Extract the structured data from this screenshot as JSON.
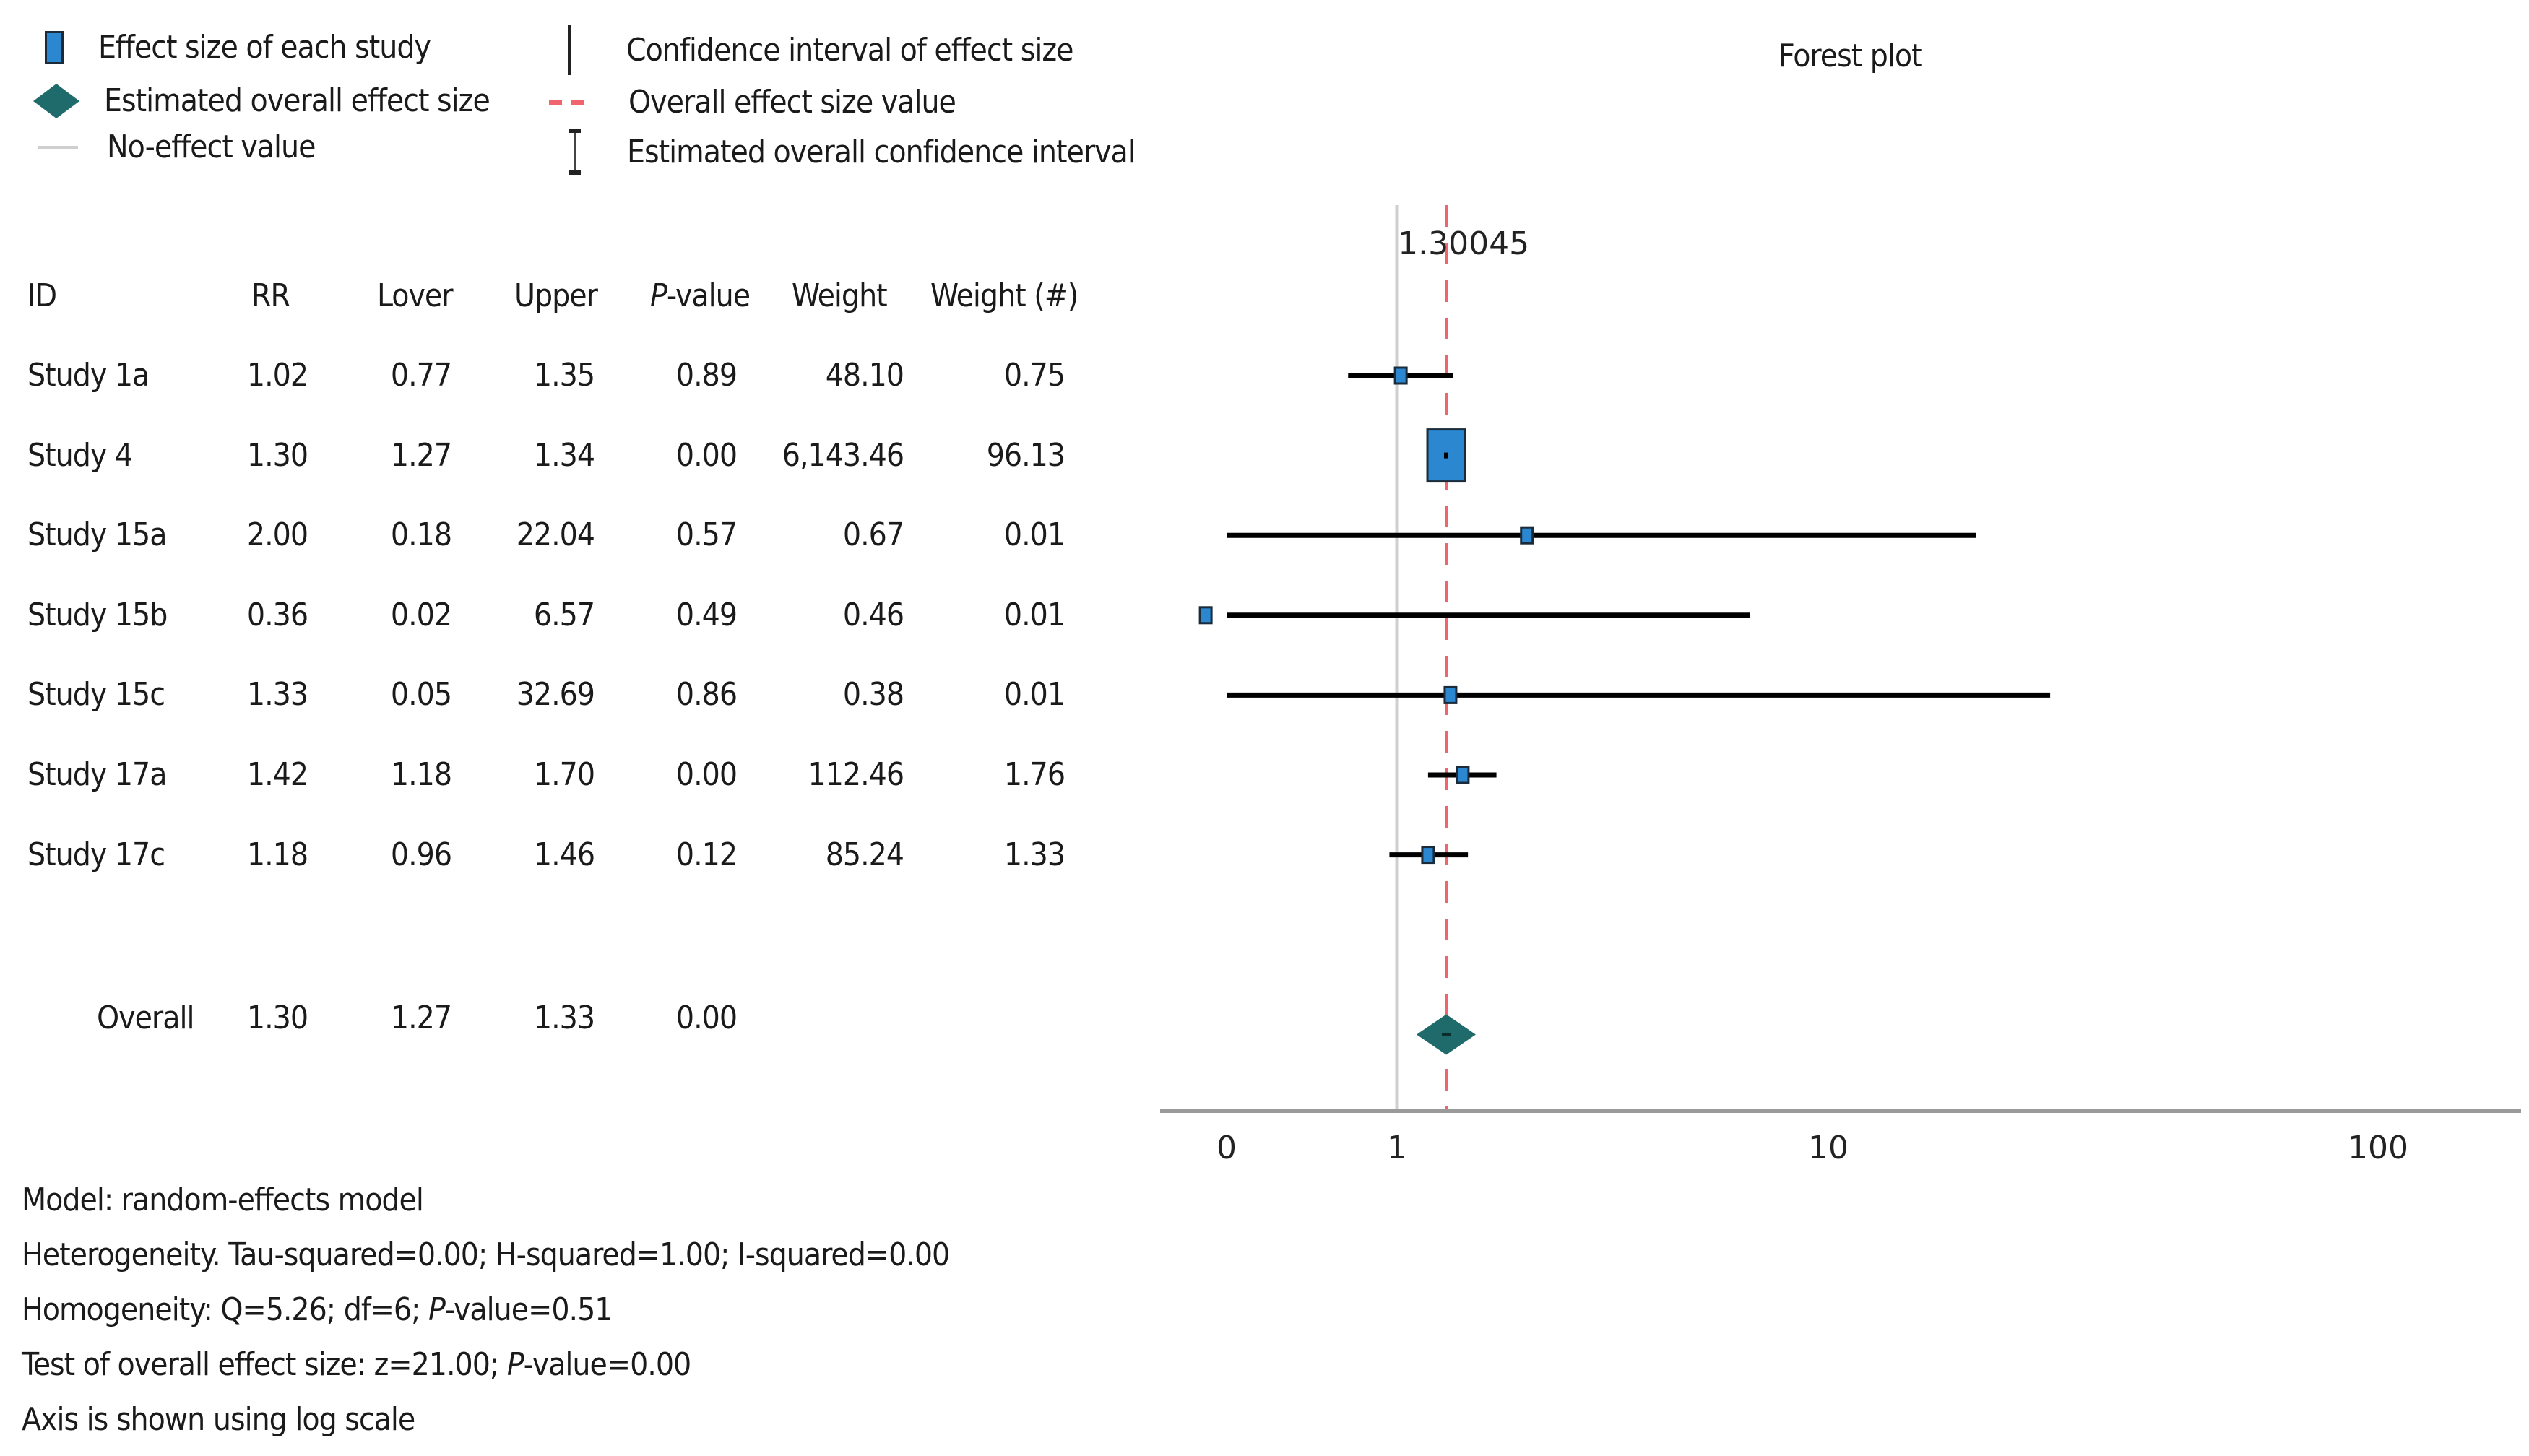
{
  "legend": {
    "items": [
      {
        "label": "Effect size of each study",
        "icon": "blue-square-icon"
      },
      {
        "label": "Estimated overall effect size",
        "icon": "teal-diamond-icon"
      },
      {
        "label": "No-effect value",
        "icon": "grey-line-icon"
      },
      {
        "label": "Confidence interval of effect size",
        "icon": "vertical-line-icon"
      },
      {
        "label": "Overall effect size value",
        "icon": "red-dashed-line-icon"
      },
      {
        "label": "Estimated overall confidence interval",
        "icon": "i-beam-icon"
      }
    ]
  },
  "table": {
    "headers": {
      "id": "ID",
      "rr": "RR",
      "lower": "Lover",
      "upper": "Upper",
      "p_italic": "P",
      "p_rest": "-value",
      "weight": "Weight",
      "weight_pct": "Weight (#)"
    },
    "rows": [
      {
        "id": "Study 1a",
        "rr": "1.02",
        "lower": "0.77",
        "upper": "1.35",
        "p": "0.89",
        "weight": "48.10",
        "weight_pct": "0.75"
      },
      {
        "id": "Study 4",
        "rr": "1.30",
        "lower": "1.27",
        "upper": "1.34",
        "p": "0.00",
        "weight": "6,143.46",
        "weight_pct": "96.13"
      },
      {
        "id": "Study 15a",
        "rr": "2.00",
        "lower": "0.18",
        "upper": "22.04",
        "p": "0.57",
        "weight": "0.67",
        "weight_pct": "0.01"
      },
      {
        "id": "Study 15b",
        "rr": "0.36",
        "lower": "0.02",
        "upper": "6.57",
        "p": "0.49",
        "weight": "0.46",
        "weight_pct": "0.01"
      },
      {
        "id": "Study 15c",
        "rr": "1.33",
        "lower": "0.05",
        "upper": "32.69",
        "p": "0.86",
        "weight": "0.38",
        "weight_pct": "0.01"
      },
      {
        "id": "Study 17a",
        "rr": "1.42",
        "lower": "1.18",
        "upper": "1.70",
        "p": "0.00",
        "weight": "112.46",
        "weight_pct": "1.76"
      },
      {
        "id": "Study 17c",
        "rr": "1.18",
        "lower": "0.96",
        "upper": "1.46",
        "p": "0.12",
        "weight": "85.24",
        "weight_pct": "1.33"
      }
    ],
    "overall": {
      "id": "Overall",
      "rr": "1.30",
      "lower": "1.27",
      "upper": "1.33",
      "p": "0.00"
    }
  },
  "footer": {
    "model": "Model: random-effects model",
    "heterogeneity": "Heterogeneity. Tau-squared=0.00; H-squared=1.00; I-squared=0.00",
    "homogeneity_pre": "Homogeneity: Q=5.26; df=6; ",
    "homogeneity_p": "P",
    "homogeneity_post": "-value=0.51",
    "test_pre": "Test of overall effect size: z=21.00; ",
    "test_p": "P",
    "test_post": "-value=0.00",
    "axis_note": "Axis is shown using log scale"
  },
  "chart_data": {
    "type": "forest",
    "title": "Forest plot",
    "scale": "log",
    "overall_label": "1.30045",
    "no_effect_value": 1,
    "overall_value": 1.30045,
    "x_tick_labels": [
      "0",
      "1",
      "10",
      "100"
    ],
    "studies": [
      {
        "id": "Study 1a",
        "rr": 1.02,
        "lower": 0.77,
        "upper": 1.35,
        "weight_pct": 0.75
      },
      {
        "id": "Study 4",
        "rr": 1.3,
        "lower": 1.27,
        "upper": 1.34,
        "weight_pct": 96.13
      },
      {
        "id": "Study 15a",
        "rr": 2.0,
        "lower": 0.18,
        "upper": 22.04,
        "weight_pct": 0.01
      },
      {
        "id": "Study 15b",
        "rr": 0.36,
        "lower": 0.02,
        "upper": 6.57,
        "weight_pct": 0.01
      },
      {
        "id": "Study 15c",
        "rr": 1.33,
        "lower": 0.05,
        "upper": 32.69,
        "weight_pct": 0.01
      },
      {
        "id": "Study 17a",
        "rr": 1.42,
        "lower": 1.18,
        "upper": 1.7,
        "weight_pct": 1.76
      },
      {
        "id": "Study 17c",
        "rr": 1.18,
        "lower": 0.96,
        "upper": 1.46,
        "weight_pct": 1.33
      }
    ],
    "overall": {
      "rr": 1.3,
      "lower": 1.27,
      "upper": 1.33
    },
    "colors": {
      "study_box": "#2a87d0",
      "diamond": "#1f6b6b",
      "overall_line": "#f0646e",
      "no_effect_line": "#cfcfcf",
      "axis": "#9a9a9a"
    }
  }
}
